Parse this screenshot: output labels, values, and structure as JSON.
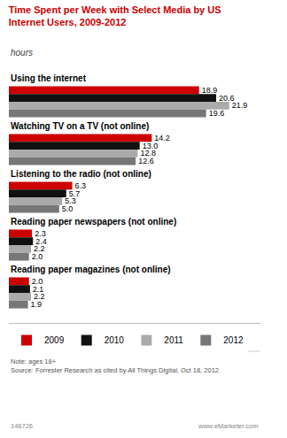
{
  "chart_data": {
    "type": "bar",
    "orientation": "horizontal",
    "title": "Time Spent per Week with Select Media by US\nInternet Users, 2009-2012",
    "subtitle": "hours",
    "categories": [
      "Using the internet",
      "Watching TV on a TV (not online)",
      "Listening to the radio (not online)",
      "Reading paper newspapers (not online)",
      "Reading paper magazines (not online)"
    ],
    "series": [
      {
        "name": "2009",
        "color": "#cc0000",
        "values": [
          18.9,
          14.2,
          6.3,
          2.3,
          2.0
        ],
        "value_labels": [
          "18.9",
          "14.2",
          "6.3",
          "2.3",
          "2.0"
        ]
      },
      {
        "name": "2010",
        "color": "#111111",
        "values": [
          20.6,
          13.0,
          5.7,
          2.4,
          2.1
        ],
        "value_labels": [
          "20.6",
          "13.0",
          "5.7",
          "2.4",
          "2.1"
        ]
      },
      {
        "name": "2011",
        "color": "#aaaaaa",
        "values": [
          21.9,
          12.8,
          5.3,
          2.2,
          2.2
        ],
        "value_labels": [
          "21.9",
          "12.8",
          "5.3",
          "2.2",
          "2.2"
        ]
      },
      {
        "name": "2012",
        "color": "#777777",
        "values": [
          19.6,
          12.6,
          5.0,
          2.0,
          1.9
        ],
        "value_labels": [
          "19.6",
          "12.6",
          "5.0",
          "2.0",
          "1.9"
        ]
      }
    ],
    "xlim": [
      0,
      25
    ],
    "data_labels": true,
    "tick_labels": false,
    "grid": false,
    "legend": "bottom",
    "annotations": [
      "Note: ages 18+\nSource: Forrester Research as cited by All Things Digital, Oct 18, 2012",
      "146726",
      "www.eMarketer.com"
    ]
  }
}
